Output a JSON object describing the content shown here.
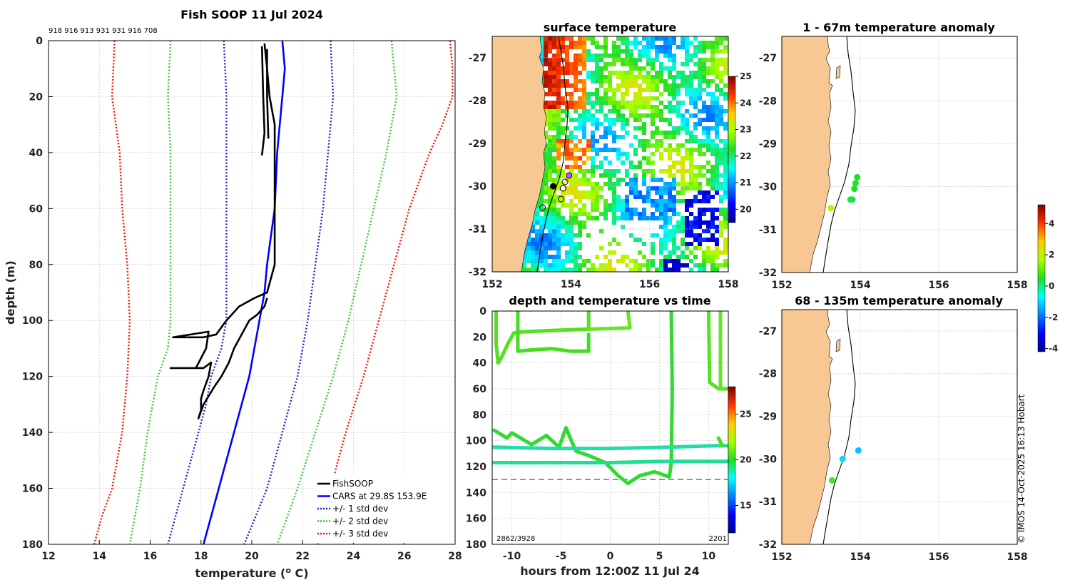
{
  "colors": {
    "cars": "#0000ff",
    "std1": "#1f1fd0",
    "std2": "#33cc33",
    "std3": "#ee1100",
    "soop": "#000000",
    "land": "#f8c894"
  },
  "chart_data": [
    {
      "id": "profile",
      "type": "line",
      "title": "Fish SOOP 11 Jul 2024",
      "xlabel": "temperature (",
      "xlabel_sup": "o",
      "xlabel_end": " C)",
      "ylabel": "depth (m)",
      "xlim": [
        12,
        28
      ],
      "ylim": [
        180,
        0
      ],
      "xticks": [
        12,
        14,
        16,
        18,
        20,
        22,
        24,
        26,
        28
      ],
      "yticks": [
        0,
        20,
        40,
        60,
        80,
        100,
        120,
        140,
        160,
        180
      ],
      "top_label": "918 916 913 931 931 916 708",
      "series": [
        {
          "name": "+/- 3 std dev",
          "color": "#ee1100",
          "dash": true,
          "side": "left",
          "depth": [
            0,
            20,
            40,
            60,
            80,
            100,
            120,
            140,
            160,
            170,
            180
          ],
          "temp": [
            14.6,
            14.5,
            14.8,
            14.9,
            15.1,
            15.2,
            15.1,
            14.9,
            14.5,
            14.1,
            13.8
          ]
        },
        {
          "name": "+/- 3 std dev",
          "color": "#ee1100",
          "dash": true,
          "side": "right",
          "depth": [
            0,
            10,
            20,
            30,
            40,
            60,
            80,
            100,
            120,
            140,
            160,
            170,
            180
          ],
          "temp": [
            27.8,
            27.9,
            27.9,
            27.5,
            27.0,
            26.2,
            25.6,
            25.0,
            24.4,
            23.7,
            23.1,
            22.8,
            22.6
          ]
        },
        {
          "name": "+/- 2 std dev",
          "color": "#33cc33",
          "dash": true,
          "side": "left",
          "depth": [
            0,
            20,
            40,
            60,
            80,
            100,
            110,
            120,
            140,
            160,
            180
          ],
          "temp": [
            16.8,
            16.7,
            16.8,
            16.8,
            16.8,
            16.8,
            16.7,
            16.3,
            15.9,
            15.6,
            15.2
          ]
        },
        {
          "name": "+/- 2 std dev",
          "color": "#33cc33",
          "dash": true,
          "side": "right",
          "depth": [
            0,
            20,
            40,
            60,
            80,
            100,
            120,
            140,
            160,
            180
          ],
          "temp": [
            25.5,
            25.7,
            25.3,
            24.8,
            24.3,
            23.8,
            23.2,
            22.5,
            21.8,
            21.0
          ]
        },
        {
          "name": "+/- 1 std dev",
          "color": "#1f1fd0",
          "dash": true,
          "side": "left",
          "depth": [
            0,
            20,
            40,
            60,
            80,
            100,
            110,
            120,
            130,
            140,
            160,
            180
          ],
          "temp": [
            18.9,
            19.0,
            19.0,
            19.0,
            19.0,
            19.0,
            18.8,
            18.4,
            18.2,
            17.9,
            17.3,
            16.7
          ]
        },
        {
          "name": "+/- 1 std dev",
          "color": "#1f1fd0",
          "dash": true,
          "side": "right",
          "depth": [
            0,
            20,
            40,
            60,
            80,
            100,
            120,
            140,
            160,
            180
          ],
          "temp": [
            23.1,
            23.2,
            23.0,
            22.8,
            22.5,
            22.2,
            21.8,
            21.2,
            20.6,
            19.7
          ]
        },
        {
          "name": "CARS at 29.8S 153.9E",
          "color": "#0000ff",
          "dash": false,
          "depth": [
            0,
            10,
            20,
            40,
            60,
            80,
            90,
            100,
            120,
            140,
            160,
            180
          ],
          "temp": [
            21.2,
            21.3,
            21.2,
            21.0,
            20.9,
            20.6,
            20.5,
            20.3,
            19.9,
            19.3,
            18.7,
            18.1
          ]
        },
        {
          "name": "FishSOOP",
          "color": "#000000",
          "dash": false,
          "depth": [
            1,
            10,
            20,
            30,
            40,
            60,
            70,
            80,
            90,
            92,
            95,
            100,
            105,
            106,
            106,
            104,
            110,
            117,
            117,
            117,
            115,
            120,
            125,
            128,
            132,
            135,
            130,
            124,
            120,
            115,
            110,
            105,
            100,
            98,
            95,
            92
          ],
          "temp": [
            20.5,
            20.6,
            20.7,
            20.9,
            20.9,
            20.9,
            20.9,
            20.9,
            20.6,
            20.1,
            19.5,
            19.0,
            18.6,
            18.1,
            16.9,
            18.3,
            18.2,
            17.8,
            16.8,
            18.1,
            18.4,
            18.3,
            18.1,
            18.0,
            18.0,
            17.9,
            18.1,
            18.5,
            18.8,
            19.1,
            19.3,
            19.6,
            19.9,
            20.2,
            20.5,
            20.6
          ]
        },
        {
          "name": "FishSOOP",
          "color": "#000000",
          "dash": false,
          "depth": [
            2,
            20,
            33,
            41
          ],
          "temp": [
            20.4,
            20.45,
            20.5,
            20.4
          ]
        },
        {
          "name": "FishSOOP",
          "color": "#000000",
          "dash": false,
          "depth": [
            3,
            20,
            35
          ],
          "temp": [
            20.6,
            20.6,
            20.65
          ]
        }
      ],
      "legend": [
        {
          "label": "FishSOOP",
          "color": "#000000",
          "dash": false
        },
        {
          "label": "CARS at 29.8S 153.9E",
          "color": "#0000ff",
          "dash": false
        },
        {
          "label": "+/- 1 std dev",
          "color": "#1f1fd0",
          "dash": true
        },
        {
          "label": "+/- 2 std dev",
          "color": "#33cc33",
          "dash": true
        },
        {
          "label": "+/- 3 std dev",
          "color": "#ee1100",
          "dash": true
        }
      ],
      "legend_position": "bottom-right"
    },
    {
      "id": "sst",
      "type": "heatmap",
      "title": "surface temperature",
      "xlim": [
        152,
        158
      ],
      "ylim": [
        -32,
        -26.5
      ],
      "xticks": [
        152,
        154,
        156,
        158
      ],
      "yticks": [
        -27,
        -28,
        -29,
        -30,
        -31,
        -32
      ],
      "colorbar": {
        "min": 19.5,
        "max": 25,
        "ticks": [
          20,
          21,
          22,
          23,
          24,
          25
        ]
      },
      "stations": [
        {
          "lon": 153.55,
          "lat": -30.0,
          "filled": true
        },
        {
          "lon": 153.28,
          "lat": -30.5,
          "filled": false
        },
        {
          "lon": 153.75,
          "lat": -30.3,
          "filled": false
        },
        {
          "lon": 153.8,
          "lat": -30.05,
          "filled": false
        },
        {
          "lon": 153.85,
          "lat": -29.9,
          "filled": false
        },
        {
          "lon": 153.95,
          "lat": -29.75,
          "filled": false,
          "magenta": true
        }
      ]
    },
    {
      "id": "timeseries",
      "type": "scatter",
      "title": "depth and temperature vs time",
      "xlabel": "hours from 12:00Z 11 Jul 24",
      "xlim": [
        -12,
        12
      ],
      "ylim": [
        180,
        0
      ],
      "xticks": [
        -10,
        -5,
        0,
        5,
        10
      ],
      "yticks": [
        0,
        20,
        40,
        60,
        80,
        100,
        120,
        140,
        160,
        180
      ],
      "dashed_line_depth": 130,
      "annotation_left": "2862/3928",
      "annotation_right": "2201",
      "colorbar": {
        "min": 12,
        "max": 28,
        "ticks": [
          15,
          20,
          25
        ]
      }
    },
    {
      "id": "anom_shallow",
      "type": "scatter",
      "title": "1 - 67m temperature anomaly",
      "xlim": [
        152,
        158
      ],
      "ylim": [
        -32,
        -26.5
      ],
      "xticks": [
        152,
        154,
        156,
        158
      ],
      "yticks": [
        -27,
        -28,
        -29,
        -30,
        -31,
        -32
      ],
      "points": [
        {
          "lon": 153.25,
          "lat": -30.5,
          "anom": 2.1
        },
        {
          "lon": 153.75,
          "lat": -30.3,
          "anom": 0.3
        },
        {
          "lon": 153.8,
          "lat": -30.3,
          "anom": 0.3
        },
        {
          "lon": 153.85,
          "lat": -30.05,
          "anom": 0.5
        },
        {
          "lon": 153.88,
          "lat": -29.92,
          "anom": 0.4
        },
        {
          "lon": 153.92,
          "lat": -29.78,
          "anom": 0.5
        }
      ]
    },
    {
      "id": "anom_deep",
      "type": "scatter",
      "title": "68 - 135m temperature anomaly",
      "xlim": [
        152,
        158
      ],
      "ylim": [
        -32,
        -26.5
      ],
      "xticks": [
        152,
        154,
        156,
        158
      ],
      "yticks": [
        -27,
        -28,
        -29,
        -30,
        -31,
        -32
      ],
      "points": [
        {
          "lon": 153.28,
          "lat": -30.5,
          "anom": 0.8
        },
        {
          "lon": 153.55,
          "lat": -30.0,
          "anom": -1.0
        },
        {
          "lon": 153.95,
          "lat": -29.8,
          "anom": -1.2
        }
      ],
      "colorbar": {
        "min": -4.2,
        "max": 5.2,
        "ticks": [
          4,
          2,
          0,
          -2,
          -4
        ]
      }
    }
  ],
  "credit": "© IMOS 14-Oct-2025 16:13 Hobart"
}
